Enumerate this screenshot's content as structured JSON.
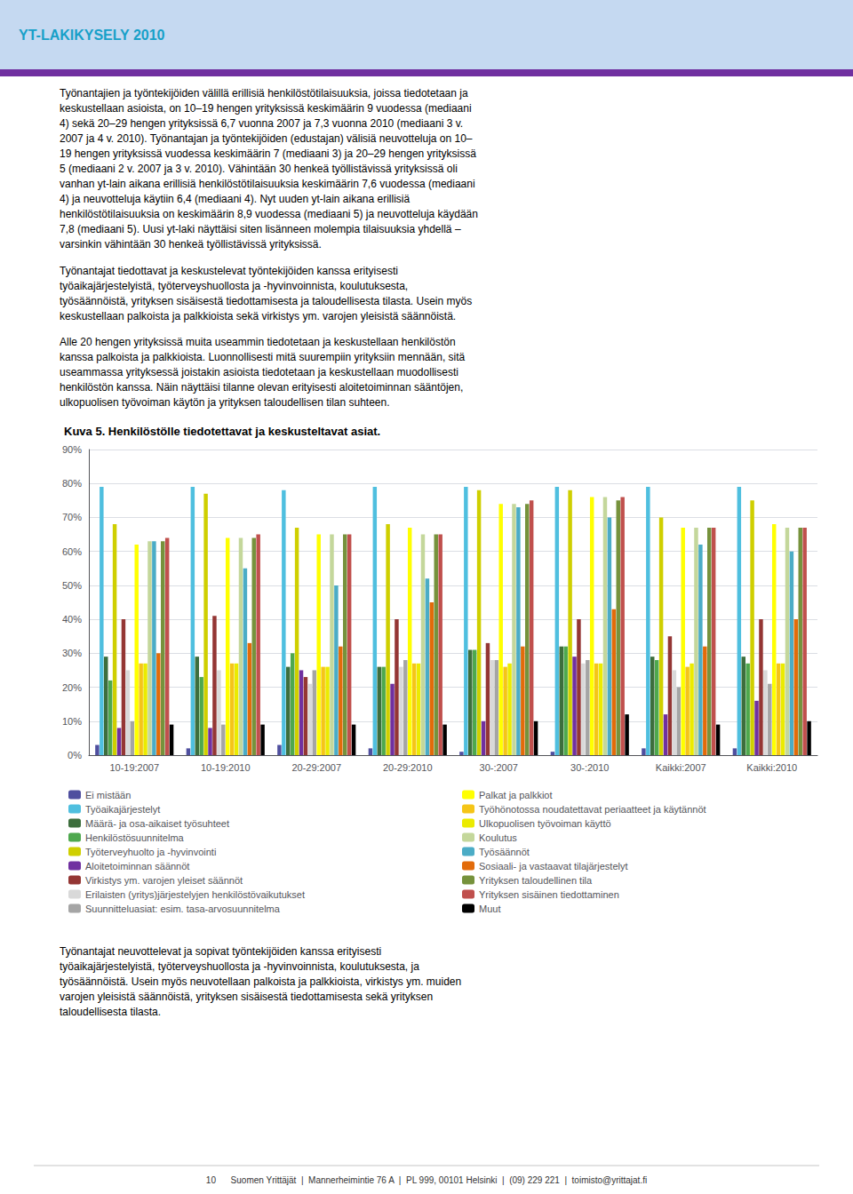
{
  "chart_data": {
    "type": "bar",
    "title": "Kuva 5. Henkilöstölle tiedotettavat ja keskusteltavat asiat.",
    "annotations": [
      "YT-LAKIKYSELY 2010",
      "Työnantajien ja työntekijöiden välillä erillisiä henkilöstötilaisuuksia, joissa tiedotetaan ja\nkeskustellaan asioista, on 10–19 hengen yrityksissä keskimäärin 9 vuodessa (mediaani\n4) sekä 20–29 hengen yrityksissä 6,7 vuonna 2007 ja 7,3 vuonna 2010 (mediaani 3 v.\n2007 ja 4 v. 2010). Työnantajan ja työntekijöiden (edustajan) välisiä neuvotteluja on 10–\n19 hengen yrityksissä vuodessa keskimäärin 7 (mediaani 3) ja 20–29 hengen yrityksissä\n5 (mediaani 2 v. 2007 ja 3 v. 2010). Vähintään 30 henkeä työllistävissä yrityksissä oli\nvanhan yt-lain aikana erillisiä henkilöstötilaisuuksia keskimäärin 7,6 vuodessa (mediaani\n4) ja neuvotteluja käytiin 6,4 (mediaani 4). Nyt uuden yt-lain aikana erillisiä\nhenkilöstötilaisuuksia on keskimäärin 8,9 vuodessa (mediaani 5) ja neuvotteluja käydään\n7,8 (mediaani 5). Uusi yt-laki näyttäisi siten lisänneen molempia tilaisuuksia yhdellä –\nvarsinkin vähintään 30 henkeä työllistävissä yrityksissä.",
      "Työnantajat tiedottavat ja keskustelevat työntekijöiden kanssa erityisesti\ntyöaikajärjestelyistä, työterveyshuollosta ja -hyvinvoinnista, koulutuksesta,\ntyösäännöistä, yrityksen sisäisestä tiedottamisesta ja taloudellisesta tilasta. Usein myös\nkeskustellaan palkoista ja palkkioista sekä virkistys ym. varojen yleisistä säännöistä.",
      "Alle 20 hengen yrityksissä muita useammin tiedotetaan ja keskustellaan henkilöstön\nkanssa palkoista ja palkkioista. Luonnollisesti mitä suurempiin yrityksiin mennään, sitä\nuseammassa yrityksessä joistakin asioista tiedotetaan ja keskustellaan muodollisesti\nhenkilöstön kanssa. Näin näyttäisi tilanne olevan erityisesti aloitetoiminnan sääntöjen,\nulkopuolisen työvoiman käytön ja yrityksen taloudellisen tilan suhteen.",
      "Työnantajat neuvottelevat ja sopivat työntekijöiden kanssa erityisesti\ntyöaikajärjestelyistä, työterveyshuollosta ja -hyvinvoinnista, koulutuksesta, ja\ntyösäännöistä. Usein myös neuvotellaan palkoista ja palkkioista, virkistys ym. muiden\nvarojen yleisistä säännöistä, yrityksen sisäisestä tiedottamisesta sekä yrityksen\ntaloudellisesta tilasta.",
      "10      Suomen Yrittäjät  |  Mannerheimintie 76 A  |  PL 999, 00101 Helsinki  |  (09) 229 221  |  toimisto@yrittajat.fi"
    ],
    "categories": [
      "10-19:2007",
      "10-19:2010",
      "20-29:2007",
      "20-29:2010",
      "30-:2007",
      "30-:2010",
      "Kaikki:2007",
      "Kaikki:2010"
    ],
    "series": [
      {
        "name": "Ei mistään",
        "color": "#4f4f9f",
        "values": [
          3,
          2,
          3,
          2,
          1,
          1,
          2,
          2
        ]
      },
      {
        "name": "Työaikajärjestelyt",
        "color": "#4fbfdf",
        "values": [
          79,
          79,
          78,
          79,
          79,
          79,
          79,
          79
        ]
      },
      {
        "name": "Määrä- ja osa-aikaiset työsuhteet",
        "color": "#3d6e3d",
        "values": [
          29,
          29,
          26,
          26,
          31,
          32,
          29,
          29
        ]
      },
      {
        "name": "Henkilöstösuunnitelma",
        "color": "#4ea84e",
        "values": [
          22,
          23,
          30,
          26,
          31,
          32,
          28,
          27
        ]
      },
      {
        "name": "Työterveyhuolto ja -hyvinvointi",
        "color": "#cfcf00",
        "values": [
          68,
          77,
          67,
          68,
          78,
          78,
          70,
          75
        ]
      },
      {
        "name": "Aloitetoiminnan säännöt",
        "color": "#7030a0",
        "values": [
          8,
          8,
          25,
          21,
          10,
          29,
          12,
          16
        ]
      },
      {
        "name": "Virkistys ym. varojen yleiset säännöt",
        "color": "#943634",
        "values": [
          40,
          41,
          23,
          40,
          33,
          40,
          35,
          40
        ]
      },
      {
        "name": "Erilaisten (yritys)järjestelyjen henkilöstövaikutukset",
        "color": "#d9d9d9",
        "values": [
          25,
          25,
          21,
          26,
          28,
          27,
          25,
          25
        ]
      },
      {
        "name": "Suunnitteluasiat: esim. tasa-arvosuunnitelma",
        "color": "#a5a5a5",
        "values": [
          10,
          9,
          25,
          28,
          28,
          28,
          20,
          21
        ]
      },
      {
        "name": "Palkat ja palkkiot",
        "color": "#ffff00",
        "values": [
          62,
          64,
          65,
          67,
          74,
          76,
          67,
          68
        ]
      },
      {
        "name": "Työhönotossa noudatettavat periaatteet ja käytännöt",
        "color": "#f5c518",
        "values": [
          27,
          27,
          26,
          27,
          26,
          27,
          26,
          27
        ]
      },
      {
        "name": "Ulkopuolisen työvoiman käyttö",
        "color": "#ebeb00",
        "values": [
          27,
          27,
          26,
          27,
          27,
          27,
          27,
          27
        ]
      },
      {
        "name": "Koulutus",
        "color": "#c4d79b",
        "values": [
          63,
          64,
          65,
          65,
          74,
          76,
          67,
          67
        ]
      },
      {
        "name": "Työsäännöt",
        "color": "#4bacc6",
        "values": [
          63,
          55,
          50,
          52,
          73,
          70,
          62,
          60
        ]
      },
      {
        "name": "Sosiaali- ja vastaavat tilajärjestelyt",
        "color": "#e26b0a",
        "values": [
          30,
          33,
          32,
          45,
          32,
          43,
          32,
          40
        ]
      },
      {
        "name": "Yrityksen taloudellinen tila",
        "color": "#76923c",
        "values": [
          63,
          64,
          65,
          65,
          74,
          75,
          67,
          67
        ]
      },
      {
        "name": "Yrityksen sisäinen tiedottaminen",
        "color": "#c0504d",
        "values": [
          64,
          65,
          65,
          65,
          75,
          76,
          67,
          67
        ]
      },
      {
        "name": "Muut",
        "color": "#000000",
        "values": [
          9,
          9,
          9,
          9,
          10,
          12,
          9,
          10
        ]
      }
    ],
    "ylim": [
      0,
      90
    ],
    "yticks": [
      {
        "value": 0,
        "label": "0%"
      },
      {
        "value": 10,
        "label": "10%"
      },
      {
        "value": 20,
        "label": "20%"
      },
      {
        "value": 30,
        "label": "30%"
      },
      {
        "value": 40,
        "label": "40%"
      },
      {
        "value": 50,
        "label": "50%"
      },
      {
        "value": 60,
        "label": "60%"
      },
      {
        "value": 70,
        "label": "70%"
      },
      {
        "value": 80,
        "label": "80%"
      },
      {
        "value": 90,
        "label": "90%"
      }
    ],
    "grid": true,
    "legend": "bottom"
  }
}
